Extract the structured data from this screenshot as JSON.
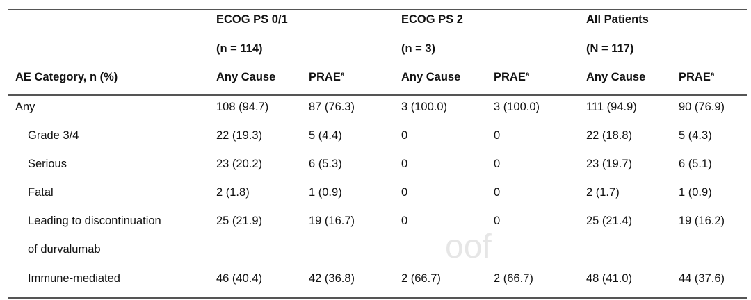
{
  "watermark": "oof",
  "header": {
    "groups": [
      {
        "title": "ECOG PS 0/1",
        "n": "(n = 114)"
      },
      {
        "title": "ECOG PS 2",
        "n": "(n = 3)"
      },
      {
        "title": "All Patients",
        "n": "(N = 117)"
      }
    ],
    "category_label": "AE Category, n (%)",
    "any_cause": "Any Cause",
    "prae": "PRAE",
    "prae_sup": "a"
  },
  "rows": [
    {
      "label": "Any",
      "values": [
        "108 (94.7)",
        "87 (76.3)",
        "3 (100.0)",
        "3 (100.0)",
        "111 (94.9)",
        "90 (76.9)"
      ]
    },
    {
      "label": "Grade 3/4",
      "values": [
        "22 (19.3)",
        "5 (4.4)",
        "0",
        "0",
        "22 (18.8)",
        "5 (4.3)"
      ]
    },
    {
      "label": "Serious",
      "values": [
        "23 (20.2)",
        "6 (5.3)",
        "0",
        "0",
        "23 (19.7)",
        "6 (5.1)"
      ]
    },
    {
      "label": "Fatal",
      "values": [
        "2 (1.8)",
        "1 (0.9)",
        "0",
        "0",
        "2 (1.7)",
        "1 (0.9)"
      ]
    },
    {
      "label": "Leading to discontinuation",
      "label2": "of durvalumab",
      "values": [
        "25 (21.9)",
        "19 (16.7)",
        "0",
        "0",
        "25 (21.4)",
        "19 (16.2)"
      ]
    },
    {
      "label": "Immune-mediated",
      "values": [
        "46 (40.4)",
        "42 (36.8)",
        "2 (66.7)",
        "2 (66.7)",
        "48 (41.0)",
        "44 (37.6)"
      ]
    }
  ]
}
